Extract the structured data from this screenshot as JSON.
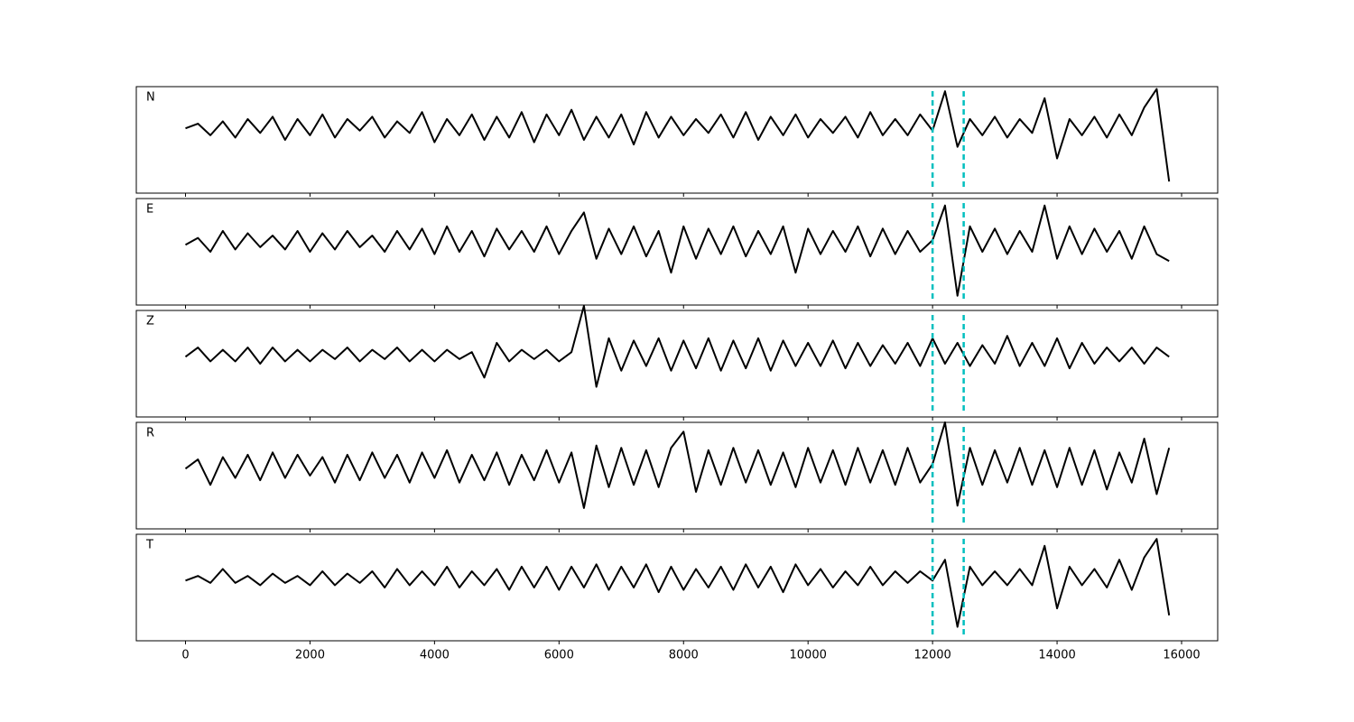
{
  "chart_data": {
    "type": "line",
    "x": [
      0,
      200,
      400,
      600,
      800,
      1000,
      1200,
      1400,
      1600,
      1800,
      2000,
      2200,
      2400,
      2600,
      2800,
      3000,
      3200,
      3400,
      3600,
      3800,
      4000,
      4200,
      4400,
      4600,
      4800,
      5000,
      5200,
      5400,
      5600,
      5800,
      6000,
      6200,
      6400,
      6600,
      6800,
      7000,
      7200,
      7400,
      7600,
      7800,
      8000,
      8200,
      8400,
      8600,
      8800,
      9000,
      9200,
      9400,
      9600,
      9800,
      10000,
      10200,
      10400,
      10600,
      10800,
      11000,
      11200,
      11400,
      11600,
      11800,
      12000,
      12200,
      12400,
      12600,
      12800,
      13000,
      13200,
      13400,
      13600,
      13800,
      14000,
      14200,
      14400,
      14600,
      14800,
      15000,
      15200,
      15400,
      15600,
      15800
    ],
    "xlim": [
      -790,
      16580
    ],
    "xticks": [
      0,
      2000,
      4000,
      6000,
      8000,
      10000,
      12000,
      14000,
      16000
    ],
    "ylim": [
      -1.3,
      1.0
    ],
    "vlines": [
      12000,
      12500
    ],
    "vline_color": "#00bfbf",
    "series": [
      {
        "name": "N",
        "color": "#000000",
        "values": [
          0.1,
          0.2,
          -0.05,
          0.25,
          -0.1,
          0.3,
          0.0,
          0.35,
          -0.15,
          0.3,
          -0.05,
          0.4,
          -0.1,
          0.3,
          0.05,
          0.35,
          -0.1,
          0.25,
          0.0,
          0.45,
          -0.2,
          0.3,
          -0.05,
          0.4,
          -0.15,
          0.35,
          -0.1,
          0.45,
          -0.2,
          0.4,
          -0.05,
          0.5,
          -0.15,
          0.35,
          -0.1,
          0.4,
          -0.25,
          0.45,
          -0.1,
          0.35,
          -0.05,
          0.3,
          0.0,
          0.4,
          -0.1,
          0.45,
          -0.15,
          0.35,
          -0.05,
          0.4,
          -0.1,
          0.3,
          0.0,
          0.35,
          -0.1,
          0.45,
          -0.05,
          0.3,
          -0.05,
          0.4,
          0.05,
          0.9,
          -0.3,
          0.3,
          -0.05,
          0.35,
          -0.1,
          0.3,
          0.0,
          0.75,
          -0.55,
          0.3,
          -0.05,
          0.35,
          -0.1,
          0.4,
          -0.05,
          0.55,
          0.95,
          -1.05
        ]
      },
      {
        "name": "E",
        "color": "#000000",
        "values": [
          0.0,
          0.15,
          -0.15,
          0.3,
          -0.1,
          0.25,
          -0.05,
          0.2,
          -0.1,
          0.3,
          -0.15,
          0.25,
          -0.1,
          0.3,
          -0.05,
          0.2,
          -0.15,
          0.3,
          -0.1,
          0.35,
          -0.2,
          0.4,
          -0.15,
          0.3,
          -0.25,
          0.35,
          -0.1,
          0.3,
          -0.15,
          0.4,
          -0.2,
          0.3,
          0.7,
          -0.3,
          0.35,
          -0.2,
          0.4,
          -0.25,
          0.3,
          -0.6,
          0.4,
          -0.3,
          0.35,
          -0.2,
          0.4,
          -0.25,
          0.3,
          -0.2,
          0.4,
          -0.6,
          0.35,
          -0.2,
          0.3,
          -0.15,
          0.4,
          -0.25,
          0.35,
          -0.2,
          0.3,
          -0.15,
          0.1,
          0.85,
          -1.1,
          0.4,
          -0.15,
          0.35,
          -0.2,
          0.3,
          -0.15,
          0.85,
          -0.3,
          0.4,
          -0.2,
          0.35,
          -0.15,
          0.3,
          -0.3,
          0.4,
          -0.2,
          -0.35
        ]
      },
      {
        "name": "Z",
        "color": "#000000",
        "values": [
          0.0,
          0.2,
          -0.1,
          0.15,
          -0.1,
          0.2,
          -0.15,
          0.2,
          -0.1,
          0.15,
          -0.1,
          0.15,
          -0.05,
          0.2,
          -0.1,
          0.15,
          -0.05,
          0.2,
          -0.1,
          0.15,
          -0.1,
          0.15,
          -0.05,
          0.1,
          -0.45,
          0.3,
          -0.1,
          0.15,
          -0.05,
          0.15,
          -0.1,
          0.1,
          1.1,
          -0.65,
          0.4,
          -0.3,
          0.35,
          -0.2,
          0.4,
          -0.3,
          0.35,
          -0.25,
          0.4,
          -0.3,
          0.35,
          -0.25,
          0.4,
          -0.3,
          0.35,
          -0.2,
          0.3,
          -0.2,
          0.35,
          -0.25,
          0.3,
          -0.2,
          0.25,
          -0.15,
          0.3,
          -0.2,
          0.4,
          -0.15,
          0.3,
          -0.2,
          0.25,
          -0.15,
          0.45,
          -0.2,
          0.3,
          -0.2,
          0.4,
          -0.25,
          0.3,
          -0.15,
          0.2,
          -0.1,
          0.2,
          -0.15,
          0.2,
          0.0
        ]
      },
      {
        "name": "R",
        "color": "#000000",
        "values": [
          0.0,
          0.2,
          -0.35,
          0.25,
          -0.2,
          0.3,
          -0.25,
          0.35,
          -0.2,
          0.3,
          -0.15,
          0.25,
          -0.3,
          0.3,
          -0.25,
          0.35,
          -0.2,
          0.3,
          -0.3,
          0.35,
          -0.2,
          0.4,
          -0.3,
          0.3,
          -0.25,
          0.35,
          -0.35,
          0.3,
          -0.25,
          0.4,
          -0.3,
          0.35,
          -0.85,
          0.5,
          -0.4,
          0.45,
          -0.35,
          0.4,
          -0.4,
          0.45,
          0.8,
          -0.5,
          0.4,
          -0.35,
          0.45,
          -0.3,
          0.4,
          -0.35,
          0.35,
          -0.4,
          0.45,
          -0.3,
          0.4,
          -0.35,
          0.45,
          -0.3,
          0.4,
          -0.35,
          0.45,
          -0.3,
          0.1,
          1.0,
          -0.8,
          0.45,
          -0.35,
          0.4,
          -0.3,
          0.45,
          -0.35,
          0.4,
          -0.4,
          0.45,
          -0.35,
          0.4,
          -0.45,
          0.35,
          -0.3,
          0.65,
          -0.55,
          0.45
        ]
      },
      {
        "name": "T",
        "color": "#000000",
        "values": [
          0.0,
          0.1,
          -0.05,
          0.25,
          -0.05,
          0.1,
          -0.1,
          0.15,
          -0.05,
          0.1,
          -0.1,
          0.2,
          -0.1,
          0.15,
          -0.05,
          0.2,
          -0.15,
          0.25,
          -0.1,
          0.2,
          -0.1,
          0.3,
          -0.15,
          0.2,
          -0.1,
          0.25,
          -0.2,
          0.3,
          -0.15,
          0.3,
          -0.2,
          0.3,
          -0.15,
          0.35,
          -0.2,
          0.3,
          -0.15,
          0.35,
          -0.25,
          0.3,
          -0.2,
          0.25,
          -0.15,
          0.3,
          -0.2,
          0.35,
          -0.15,
          0.3,
          -0.25,
          0.35,
          -0.1,
          0.25,
          -0.15,
          0.2,
          -0.1,
          0.3,
          -0.1,
          0.2,
          -0.05,
          0.2,
          0.0,
          0.45,
          -1.0,
          0.3,
          -0.1,
          0.2,
          -0.1,
          0.25,
          -0.1,
          0.75,
          -0.6,
          0.3,
          -0.1,
          0.25,
          -0.15,
          0.45,
          -0.2,
          0.5,
          0.9,
          -0.75
        ]
      }
    ]
  }
}
